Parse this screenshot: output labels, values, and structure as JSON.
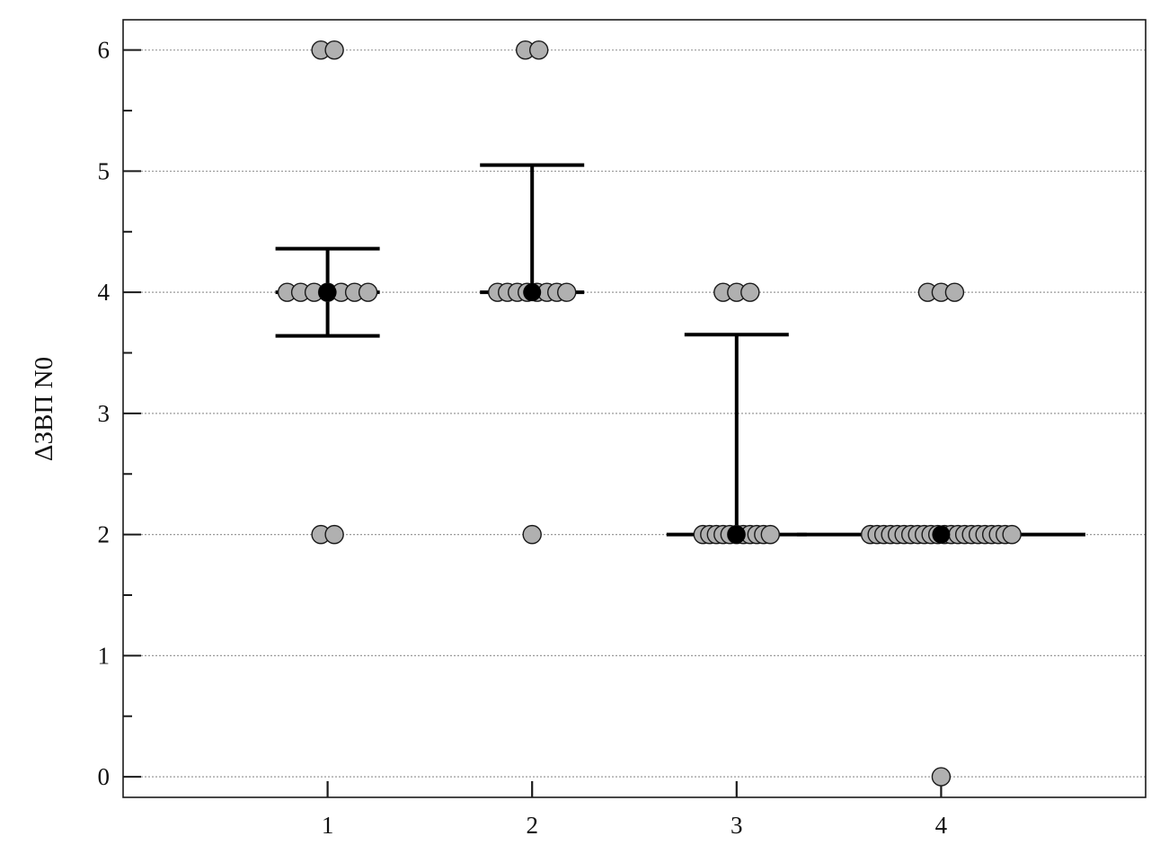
{
  "chart_data": {
    "type": "scatter",
    "subtype": "dot-plot-with-median-and-iqr",
    "title": "",
    "xlabel": "",
    "ylabel": "ΔЗВП N0",
    "categories": [
      "1",
      "2",
      "3",
      "4"
    ],
    "x_ticks": [
      "1",
      "2",
      "3",
      "4"
    ],
    "y_ticks": [
      "0",
      "1",
      "2",
      "3",
      "4",
      "5",
      "6"
    ],
    "ylim": [
      -0.17,
      6.25
    ],
    "xlim": [
      0,
      5
    ],
    "grid": "horizontal-dotted",
    "legend": "none",
    "colors": {
      "points": "#b0b0b0",
      "point_outline": "#1a1a1a",
      "median": "#000000",
      "grid": "#9a9a9a",
      "axis": "#1a1a1a"
    },
    "groups": [
      {
        "category": "1",
        "values": [
          6,
          6,
          4,
          4,
          4,
          4,
          4,
          4,
          4,
          2,
          2
        ],
        "median": 4,
        "error_upper": 4.36,
        "error_lower": 3.64
      },
      {
        "category": "2",
        "values": [
          6,
          6,
          4,
          4,
          4,
          4,
          4,
          4,
          4,
          4,
          2
        ],
        "median": 4,
        "error_upper": 5.05,
        "error_lower": 4
      },
      {
        "category": "3",
        "values": [
          4,
          4,
          4,
          2,
          2,
          2,
          2,
          2,
          2,
          2,
          2,
          2,
          2,
          2
        ],
        "median": 2,
        "error_upper": 3.65,
        "error_lower": 2
      },
      {
        "category": "4",
        "values": [
          4,
          4,
          4,
          2,
          2,
          2,
          2,
          2,
          2,
          2,
          2,
          2,
          2,
          2,
          2,
          2,
          2,
          2,
          2,
          2,
          2,
          2,
          2,
          2,
          2,
          0
        ],
        "median": 2,
        "error_upper": 2,
        "error_lower": 2
      }
    ]
  }
}
